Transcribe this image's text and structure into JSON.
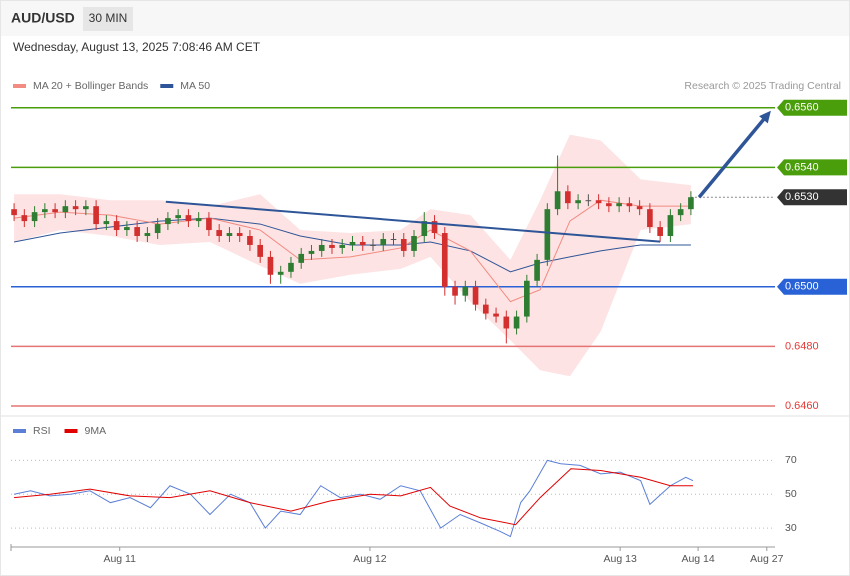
{
  "header": {
    "symbol": "AUD/USD",
    "timeframe": "30 MIN",
    "datetime": "Wednesday, August 13, 2025 7:08:46 AM CET",
    "credit": "Research © 2025 Trading Central"
  },
  "chart_data": [
    {
      "type": "candlestick",
      "xlim": [
        -0.3,
        74.2
      ],
      "ylim": [
        0.6457,
        0.6576
      ],
      "up_color": "#2e7d32",
      "down_color": "#d32f2f",
      "open": [
        0.6526,
        0.6524,
        0.6522,
        0.6525,
        0.6526,
        0.6525,
        0.6527,
        0.6526,
        0.6527,
        0.6521,
        0.6522,
        0.6519,
        0.652,
        0.6517,
        0.6518,
        0.6521,
        0.6523,
        0.6524,
        0.6522,
        0.6523,
        0.6519,
        0.6517,
        0.6518,
        0.6517,
        0.6514,
        0.651,
        0.6504,
        0.6505,
        0.6508,
        0.6511,
        0.6512,
        0.6514,
        0.6513,
        0.6514,
        0.6515,
        0.6514,
        0.6514,
        0.6516,
        0.6516,
        0.6512,
        0.6517,
        0.6522,
        0.6518,
        0.65,
        0.6497,
        0.65,
        0.6494,
        0.6491,
        0.649,
        0.6486,
        0.649,
        0.6502,
        0.6509,
        0.6526,
        0.6532,
        0.6528,
        0.6529,
        0.6529,
        0.6528,
        0.6527,
        0.6528,
        0.6527,
        0.6526,
        0.652,
        0.6517,
        0.6524,
        0.6526
      ],
      "high": [
        0.6528,
        0.6526,
        0.6527,
        0.6528,
        0.6528,
        0.6529,
        0.6529,
        0.6529,
        0.6529,
        0.6524,
        0.6524,
        0.6522,
        0.6522,
        0.652,
        0.6523,
        0.6525,
        0.6526,
        0.6526,
        0.6525,
        0.6525,
        0.6521,
        0.652,
        0.652,
        0.6519,
        0.6516,
        0.6512,
        0.6507,
        0.651,
        0.6513,
        0.6514,
        0.6516,
        0.6516,
        0.6516,
        0.6517,
        0.6517,
        0.6516,
        0.6518,
        0.6518,
        0.6518,
        0.6519,
        0.6525,
        0.6524,
        0.652,
        0.6502,
        0.6502,
        0.6502,
        0.6496,
        0.6493,
        0.6492,
        0.6492,
        0.6504,
        0.6511,
        0.6528,
        0.6544,
        0.6534,
        0.6531,
        0.6531,
        0.6531,
        0.653,
        0.653,
        0.653,
        0.6529,
        0.6528,
        0.6522,
        0.6526,
        0.6528,
        0.6532
      ],
      "low": [
        0.6522,
        0.652,
        0.652,
        0.6523,
        0.6523,
        0.6523,
        0.6524,
        0.6524,
        0.6519,
        0.6519,
        0.6517,
        0.6517,
        0.6515,
        0.6515,
        0.6516,
        0.6519,
        0.6521,
        0.652,
        0.652,
        0.6517,
        0.6515,
        0.6515,
        0.6515,
        0.6512,
        0.6508,
        0.6501,
        0.6501,
        0.6503,
        0.6506,
        0.6509,
        0.651,
        0.6511,
        0.6511,
        0.6512,
        0.6512,
        0.6512,
        0.6512,
        0.6514,
        0.651,
        0.651,
        0.6515,
        0.6516,
        0.6497,
        0.6494,
        0.6495,
        0.6492,
        0.6489,
        0.6488,
        0.6481,
        0.6484,
        0.6488,
        0.65,
        0.6507,
        0.6524,
        0.6526,
        0.6526,
        0.6527,
        0.6526,
        0.6525,
        0.6525,
        0.6525,
        0.6524,
        0.6518,
        0.6515,
        0.6515,
        0.6522,
        0.6524
      ],
      "close": [
        0.6524,
        0.6522,
        0.6525,
        0.6526,
        0.6525,
        0.6527,
        0.6526,
        0.6527,
        0.6521,
        0.6522,
        0.6519,
        0.652,
        0.6517,
        0.6518,
        0.6521,
        0.6523,
        0.6524,
        0.6522,
        0.6523,
        0.6519,
        0.6517,
        0.6518,
        0.6517,
        0.6514,
        0.651,
        0.6504,
        0.6505,
        0.6508,
        0.6511,
        0.6512,
        0.6514,
        0.6513,
        0.6514,
        0.6515,
        0.6514,
        0.6514,
        0.6516,
        0.6516,
        0.6512,
        0.6517,
        0.6522,
        0.6518,
        0.65,
        0.6497,
        0.65,
        0.6494,
        0.6491,
        0.649,
        0.6486,
        0.649,
        0.6502,
        0.6509,
        0.6526,
        0.6532,
        0.6528,
        0.6529,
        0.6529,
        0.6528,
        0.6527,
        0.6528,
        0.6527,
        0.6526,
        0.652,
        0.6517,
        0.6524,
        0.6526,
        0.653
      ],
      "indicators": {
        "x": [
          0,
          4.5,
          9.4,
          14.2,
          19.1,
          24,
          27.9,
          32.8,
          37.7,
          40.6,
          44.5,
          48.4,
          51.3,
          54.2,
          57.2,
          61.1,
          66
        ],
        "bb_upper": [
          0.6531,
          0.6531,
          0.6529,
          0.6529,
          0.6527,
          0.6531,
          0.6519,
          0.6518,
          0.6519,
          0.6526,
          0.6524,
          0.6509,
          0.6529,
          0.6551,
          0.6549,
          0.6536,
          0.6534
        ],
        "ma20": [
          0.6523,
          0.6525,
          0.6524,
          0.6521,
          0.6523,
          0.6519,
          0.6509,
          0.651,
          0.6513,
          0.6519,
          0.6512,
          0.6495,
          0.6499,
          0.6522,
          0.6529,
          0.6527,
          0.6527
        ],
        "bb_lower": [
          0.6515,
          0.6519,
          0.6517,
          0.6514,
          0.6515,
          0.6507,
          0.6501,
          0.6504,
          0.6506,
          0.651,
          0.6495,
          0.6482,
          0.6472,
          0.647,
          0.6485,
          0.6519,
          0.6521
        ],
        "ma50": [
          0.6515,
          0.6518,
          0.652,
          0.6522,
          0.6523,
          0.6521,
          0.6517,
          0.6514,
          0.6514,
          0.6515,
          0.6512,
          0.6505,
          0.6508,
          0.651,
          0.6512,
          0.6514,
          0.6514
        ]
      },
      "legend": [
        {
          "name": "MA 20 + Bollinger Bands",
          "color": "#f28b82"
        },
        {
          "name": "MA 50",
          "color": "#2e5597"
        }
      ],
      "band_color": "#fde3e3",
      "levels": [
        {
          "value": 0.656,
          "label": "0.6560",
          "color": "#4a9e0c",
          "tag": true
        },
        {
          "value": 0.654,
          "label": "0.6540",
          "color": "#4a9e0c",
          "tag": true
        },
        {
          "value": 0.653,
          "label": "0.6530",
          "color": "#333333",
          "tag": true,
          "dotted": true
        },
        {
          "value": 0.65,
          "label": "0.6500",
          "color": "#2962d6",
          "tag": true
        },
        {
          "value": 0.648,
          "label": "0.6480",
          "color": "#e57373",
          "tag": false
        },
        {
          "value": 0.646,
          "label": "0.6460",
          "color": "#e57373",
          "tag": false
        }
      ],
      "trendline": {
        "x": [
          14.8,
          63
        ],
        "y": [
          0.65285,
          0.65151
        ],
        "color": "#2e5597"
      },
      "arrow": {
        "x": [
          66.8,
          73.8
        ],
        "y": [
          0.653,
          0.6559
        ],
        "color": "#2e5597"
      }
    },
    {
      "type": "line",
      "xlim": [
        -0.3,
        74.2
      ],
      "ylim": [
        20,
        95
      ],
      "yticks": [
        30,
        50,
        70
      ],
      "xticks": [
        {
          "value": 10.3,
          "label": "Aug 11"
        },
        {
          "value": 34.7,
          "label": "Aug 12"
        },
        {
          "value": 59.1,
          "label": "Aug 13"
        },
        {
          "value": 66.7,
          "label": "Aug 14"
        },
        {
          "value": 73.4,
          "label": "Aug 27"
        }
      ],
      "series": [
        {
          "name": "RSI",
          "color": "#5b7fd6",
          "x": [
            0,
            1.6,
            3.5,
            5.5,
            7.4,
            9.4,
            11.3,
            13.3,
            15.2,
            17.2,
            19.1,
            21.1,
            23,
            24.5,
            26,
            27.9,
            29.9,
            31.8,
            33.8,
            35.7,
            37.7,
            39.6,
            41.6,
            43.5,
            45.5,
            47.4,
            48.4,
            49.4,
            50.3,
            52,
            53.3,
            55.2,
            57.2,
            59.1,
            61.1,
            62,
            64,
            65.5,
            66.2
          ],
          "values": [
            50,
            52,
            49,
            50,
            52,
            45,
            48,
            42,
            55,
            50,
            38,
            50,
            45,
            30,
            40,
            38,
            55,
            48,
            50,
            47,
            55,
            52,
            30,
            38,
            33,
            28,
            25,
            45,
            52,
            70,
            68,
            67,
            62,
            63,
            58,
            44,
            55,
            60,
            58
          ]
        },
        {
          "name": "9MA",
          "color": "#e00000",
          "x": [
            0,
            3.5,
            7.4,
            11.3,
            15.2,
            19.1,
            23,
            27,
            30.8,
            34.7,
            37.7,
            40.6,
            42.5,
            45.5,
            48.9,
            51.3,
            54.3,
            57.2,
            61.1,
            64,
            66.2
          ],
          "values": [
            48,
            50,
            53,
            49,
            48,
            52,
            45,
            40,
            46,
            50,
            49,
            54,
            43,
            36,
            32,
            48,
            65,
            64,
            60,
            55,
            55
          ]
        }
      ]
    }
  ]
}
